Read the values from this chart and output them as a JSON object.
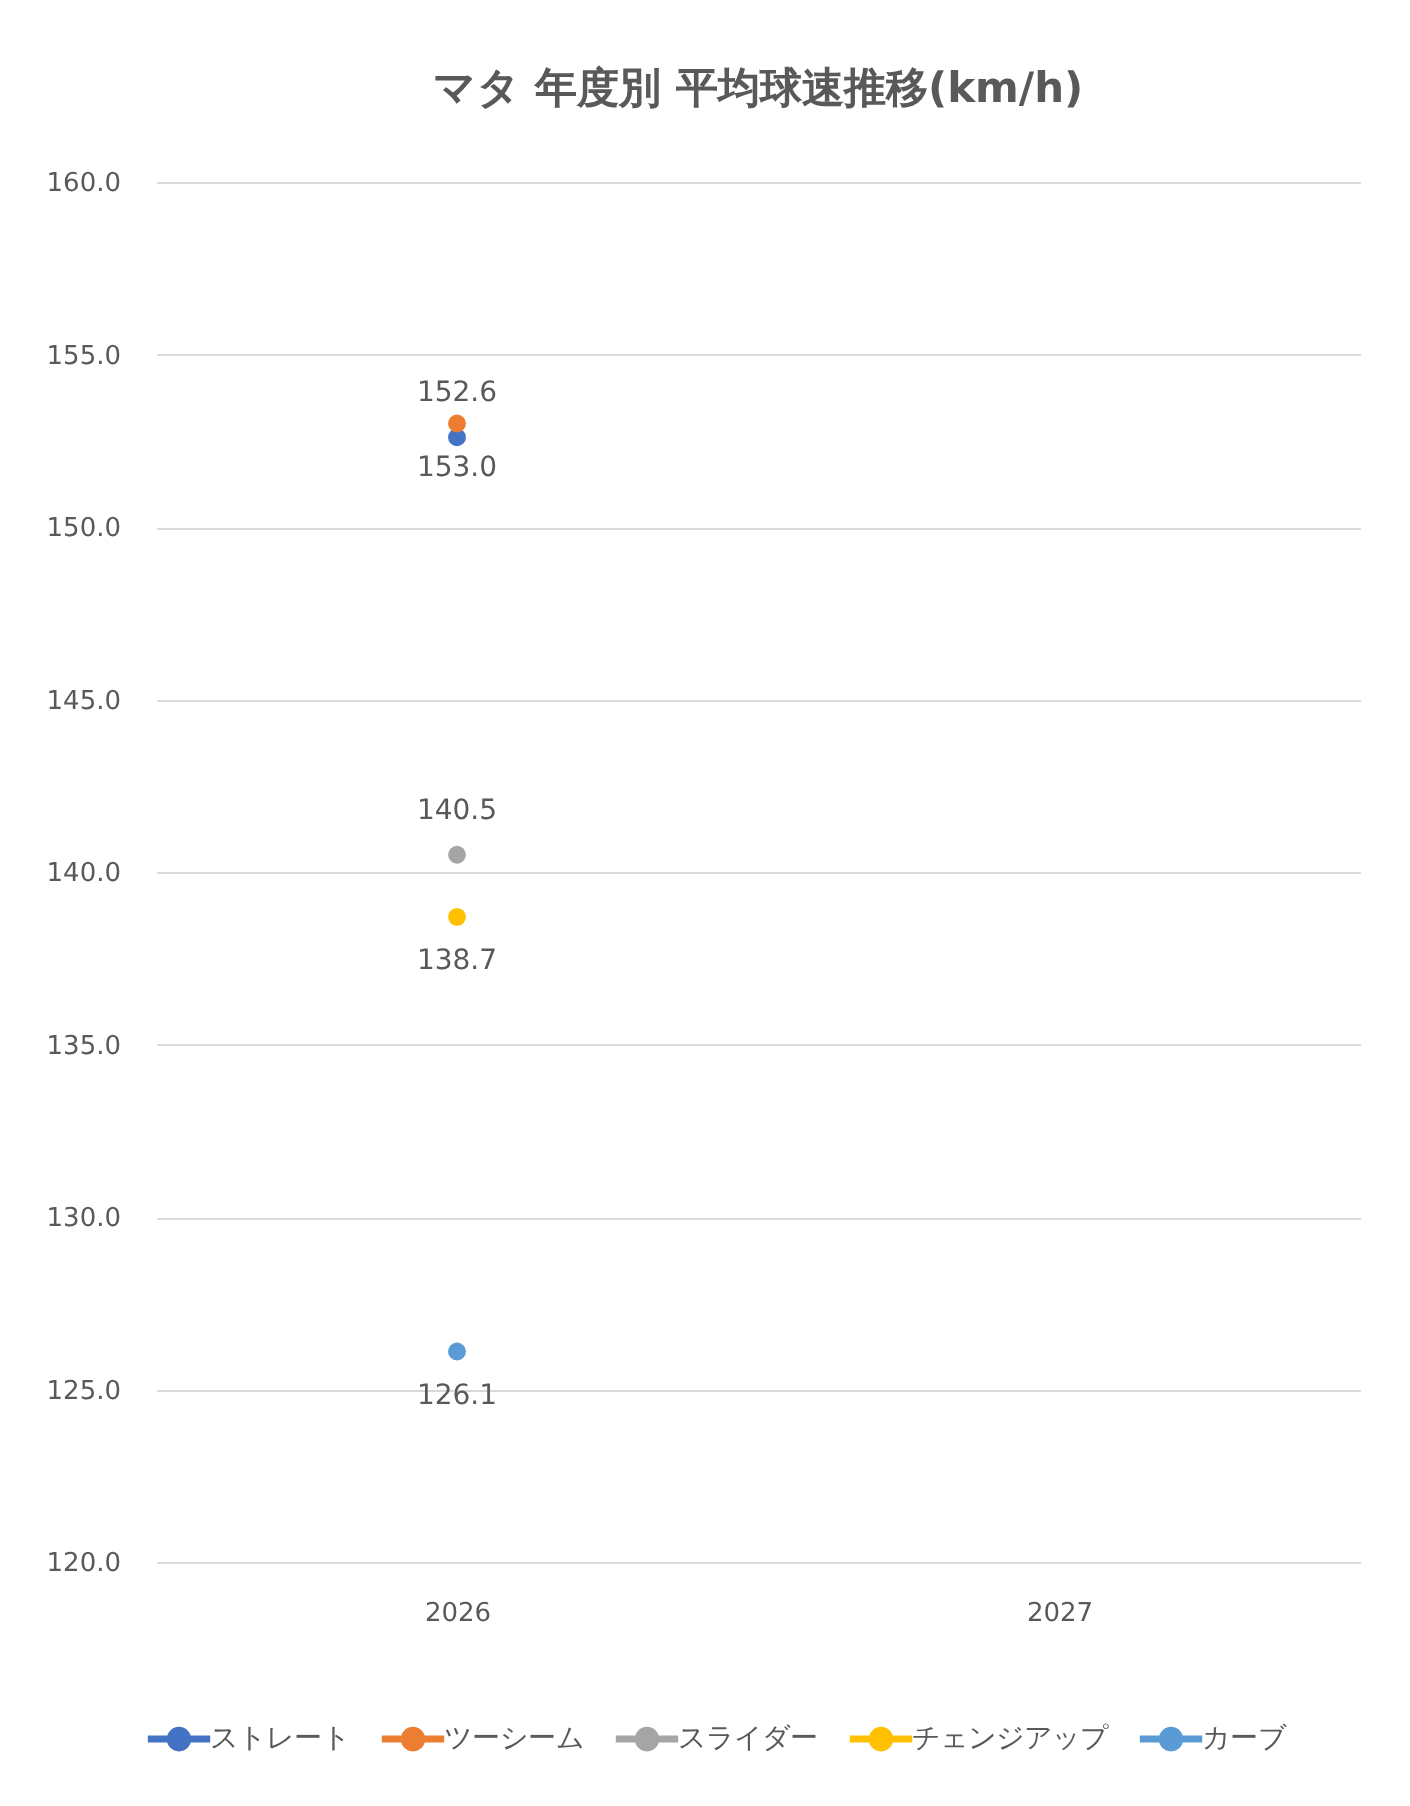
{
  "chart_data": {
    "type": "line",
    "title": "マタ 年度別 平均球速推移(km/h)",
    "categories": [
      "2026",
      "2027"
    ],
    "series": [
      {
        "name": "ストレート",
        "color": "#4472c4",
        "values": [
          152.6,
          null
        ],
        "value_labels": [
          "152.6",
          null
        ]
      },
      {
        "name": "ツーシーム",
        "color": "#ed7d31",
        "values": [
          153.0,
          null
        ],
        "value_labels": [
          "153.0",
          null
        ]
      },
      {
        "name": "スライダー",
        "color": "#a5a5a5",
        "values": [
          140.5,
          null
        ],
        "value_labels": [
          "140.5",
          null
        ]
      },
      {
        "name": "チェンジアップ",
        "color": "#ffc000",
        "values": [
          138.7,
          null
        ],
        "value_labels": [
          "138.7",
          null
        ]
      },
      {
        "name": "カーブ",
        "color": "#5b9bd5",
        "values": [
          126.1,
          null
        ],
        "value_labels": [
          "126.1",
          null
        ]
      }
    ],
    "ylim": [
      120,
      160
    ],
    "yticks": [
      {
        "value": 120,
        "label": "120.0"
      },
      {
        "value": 125,
        "label": "125.0"
      },
      {
        "value": 130,
        "label": "130.0"
      },
      {
        "value": 135,
        "label": "135.0"
      },
      {
        "value": 140,
        "label": "140.0"
      },
      {
        "value": 145,
        "label": "145.0"
      },
      {
        "value": 150,
        "label": "150.0"
      },
      {
        "value": 155,
        "label": "155.0"
      },
      {
        "value": 160,
        "label": "160.0"
      }
    ],
    "grid": "y",
    "legend": "bottom",
    "marker": "circle"
  }
}
